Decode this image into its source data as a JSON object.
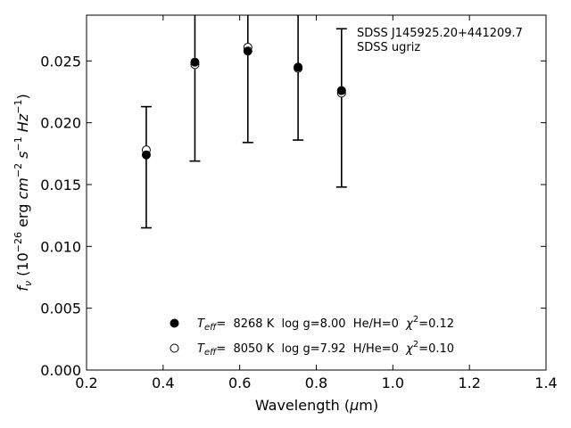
{
  "chart_data": {
    "type": "scatter",
    "xlabel_main": "Wavelength (",
    "xlabel_mu": "μ",
    "xlabel_unit": "m)",
    "ylabel": {
      "f": "f",
      "nu": "ν",
      "open": " (10",
      "exp1": "−26",
      "erg": " erg ",
      "cm": "cm",
      "exp2": "−2",
      "s": " s",
      "exp3": "−1",
      "hz": " Hz",
      "exp4": "−1",
      "close": ")"
    },
    "xlim": [
      0.2,
      1.4
    ],
    "ylim": [
      0.0,
      0.0287
    ],
    "xticks": [
      {
        "value": 0.2,
        "label": "0.2"
      },
      {
        "value": 0.4,
        "label": "0.4"
      },
      {
        "value": 0.6,
        "label": "0.6"
      },
      {
        "value": 0.8,
        "label": "0.8"
      },
      {
        "value": 1.0,
        "label": "1.0"
      },
      {
        "value": 1.2,
        "label": "1.2"
      },
      {
        "value": 1.4,
        "label": "1.4"
      }
    ],
    "yticks": [
      {
        "value": 0.0,
        "label": "0.000"
      },
      {
        "value": 0.005,
        "label": "0.005"
      },
      {
        "value": 0.01,
        "label": "0.010"
      },
      {
        "value": 0.015,
        "label": "0.015"
      },
      {
        "value": 0.02,
        "label": "0.020"
      },
      {
        "value": 0.025,
        "label": "0.025"
      }
    ],
    "observed": {
      "x": [
        0.356,
        0.483,
        0.6213,
        0.7525,
        0.866
      ],
      "y_low": [
        0.0115,
        0.0169,
        0.0184,
        0.0186,
        0.0148
      ],
      "y_high": [
        0.0213,
        0.033,
        0.033,
        0.033,
        0.0276
      ]
    },
    "series": [
      {
        "marker": "filled",
        "x": [
          0.356,
          0.483,
          0.6213,
          0.7525,
          0.866
        ],
        "y": [
          0.0174,
          0.0249,
          0.0258,
          0.0245,
          0.0226
        ]
      },
      {
        "marker": "open",
        "x": [
          0.356,
          0.483,
          0.6213,
          0.7525,
          0.866
        ],
        "y": [
          0.0178,
          0.0247,
          0.0261,
          0.0244,
          0.0224
        ]
      }
    ],
    "annotation": {
      "line1": "SDSS J145925.20+441209.7",
      "line2": "SDSS ugriz"
    },
    "legend": {
      "placement": "bottom-center",
      "entries": [
        {
          "marker": "filled",
          "teff_T": "T",
          "teff_sub": "eff",
          "teff_rest": "=  8268 K  log g=8.00  He/H=0  ",
          "chi": "χ",
          "chi_exp": "2",
          "chi_val": "=0.12"
        },
        {
          "marker": "open",
          "teff_T": "T",
          "teff_sub": "eff",
          "teff_rest": "=  8050 K  log g=7.92  H/He=0  ",
          "chi": "χ",
          "chi_exp": "2",
          "chi_val": "=0.10"
        }
      ]
    },
    "grid": false
  }
}
